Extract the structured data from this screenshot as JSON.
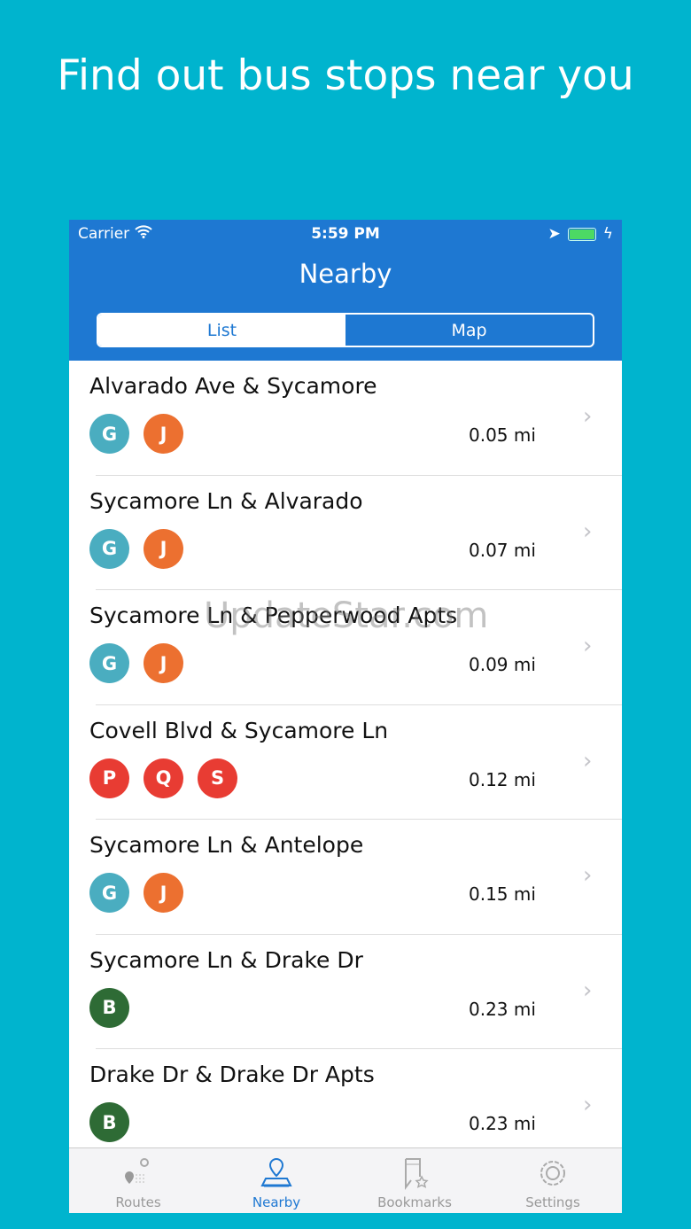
{
  "headline": "Find out bus stops near you",
  "status": {
    "carrier": "Carrier",
    "time": "5:59 PM"
  },
  "nav": {
    "title": "Nearby",
    "segments": [
      "List",
      "Map"
    ],
    "selected": "List"
  },
  "colors": {
    "background": "#00B4CE",
    "nav": "#1E78D2",
    "G": "#4AADC0",
    "J": "#EC7030",
    "P": "#E83C33",
    "Q": "#E83C33",
    "S": "#E83C33",
    "B": "#2E6B35"
  },
  "stops": [
    {
      "name": "Alvarado Ave & Sycamore",
      "routes": [
        "G",
        "J"
      ],
      "distance": "0.05 mi"
    },
    {
      "name": "Sycamore Ln & Alvarado",
      "routes": [
        "G",
        "J"
      ],
      "distance": "0.07 mi"
    },
    {
      "name": "Sycamore Ln & Pepperwood Apts",
      "routes": [
        "G",
        "J"
      ],
      "distance": "0.09 mi"
    },
    {
      "name": "Covell Blvd & Sycamore Ln",
      "routes": [
        "P",
        "Q",
        "S"
      ],
      "distance": "0.12 mi"
    },
    {
      "name": "Sycamore Ln & Antelope",
      "routes": [
        "G",
        "J"
      ],
      "distance": "0.15 mi"
    },
    {
      "name": "Sycamore Ln & Drake Dr",
      "routes": [
        "B"
      ],
      "distance": "0.23 mi"
    },
    {
      "name": "Drake Dr & Drake Dr  Apts",
      "routes": [
        "B"
      ],
      "distance": "0.23 mi"
    }
  ],
  "tabs": [
    {
      "label": "Routes",
      "icon": "routes-icon"
    },
    {
      "label": "Nearby",
      "icon": "nearby-icon",
      "active": true
    },
    {
      "label": "Bookmarks",
      "icon": "bookmarks-icon"
    },
    {
      "label": "Settings",
      "icon": "gear-icon"
    }
  ],
  "watermark": "UpdateStar.com"
}
